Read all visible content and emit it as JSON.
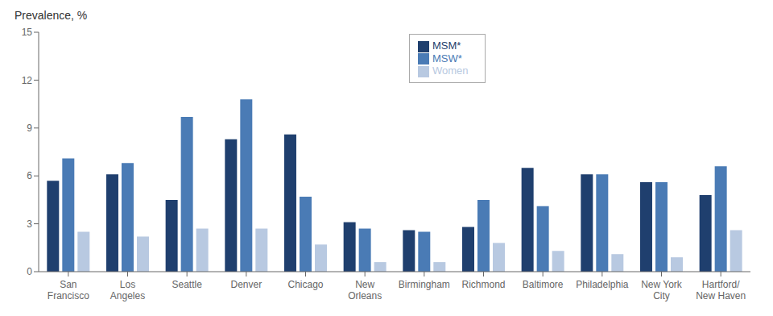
{
  "chart_data": {
    "type": "bar",
    "ylabel": "Prevalence, %",
    "categories": [
      "San\nFrancisco",
      "Los\nAngeles",
      "Seattle",
      "Denver",
      "Chicago",
      "New\nOrleans",
      "Birmingham",
      "Richmond",
      "Baltimore",
      "Philadelphia",
      "New York\nCity",
      "Hartford/\nNew Haven"
    ],
    "series": [
      {
        "name": "MSM*",
        "color": "#1F3F6E",
        "values": [
          5.7,
          6.1,
          4.5,
          8.3,
          8.6,
          3.1,
          2.6,
          2.8,
          6.5,
          6.1,
          5.6,
          4.8
        ]
      },
      {
        "name": "MSW*",
        "color": "#4A7BB5",
        "values": [
          7.1,
          6.8,
          9.7,
          10.8,
          4.7,
          2.7,
          2.5,
          4.5,
          4.1,
          6.1,
          5.6,
          6.6
        ]
      },
      {
        "name": "Women",
        "color": "#B8C9E1",
        "values": [
          2.5,
          2.2,
          2.7,
          2.7,
          1.7,
          0.6,
          0.6,
          1.8,
          1.3,
          1.1,
          0.9,
          2.6
        ]
      }
    ],
    "ylim": [
      0,
      15
    ],
    "yticks": [
      0,
      3,
      6,
      9,
      12,
      15
    ],
    "grid": false,
    "legend": "top"
  }
}
